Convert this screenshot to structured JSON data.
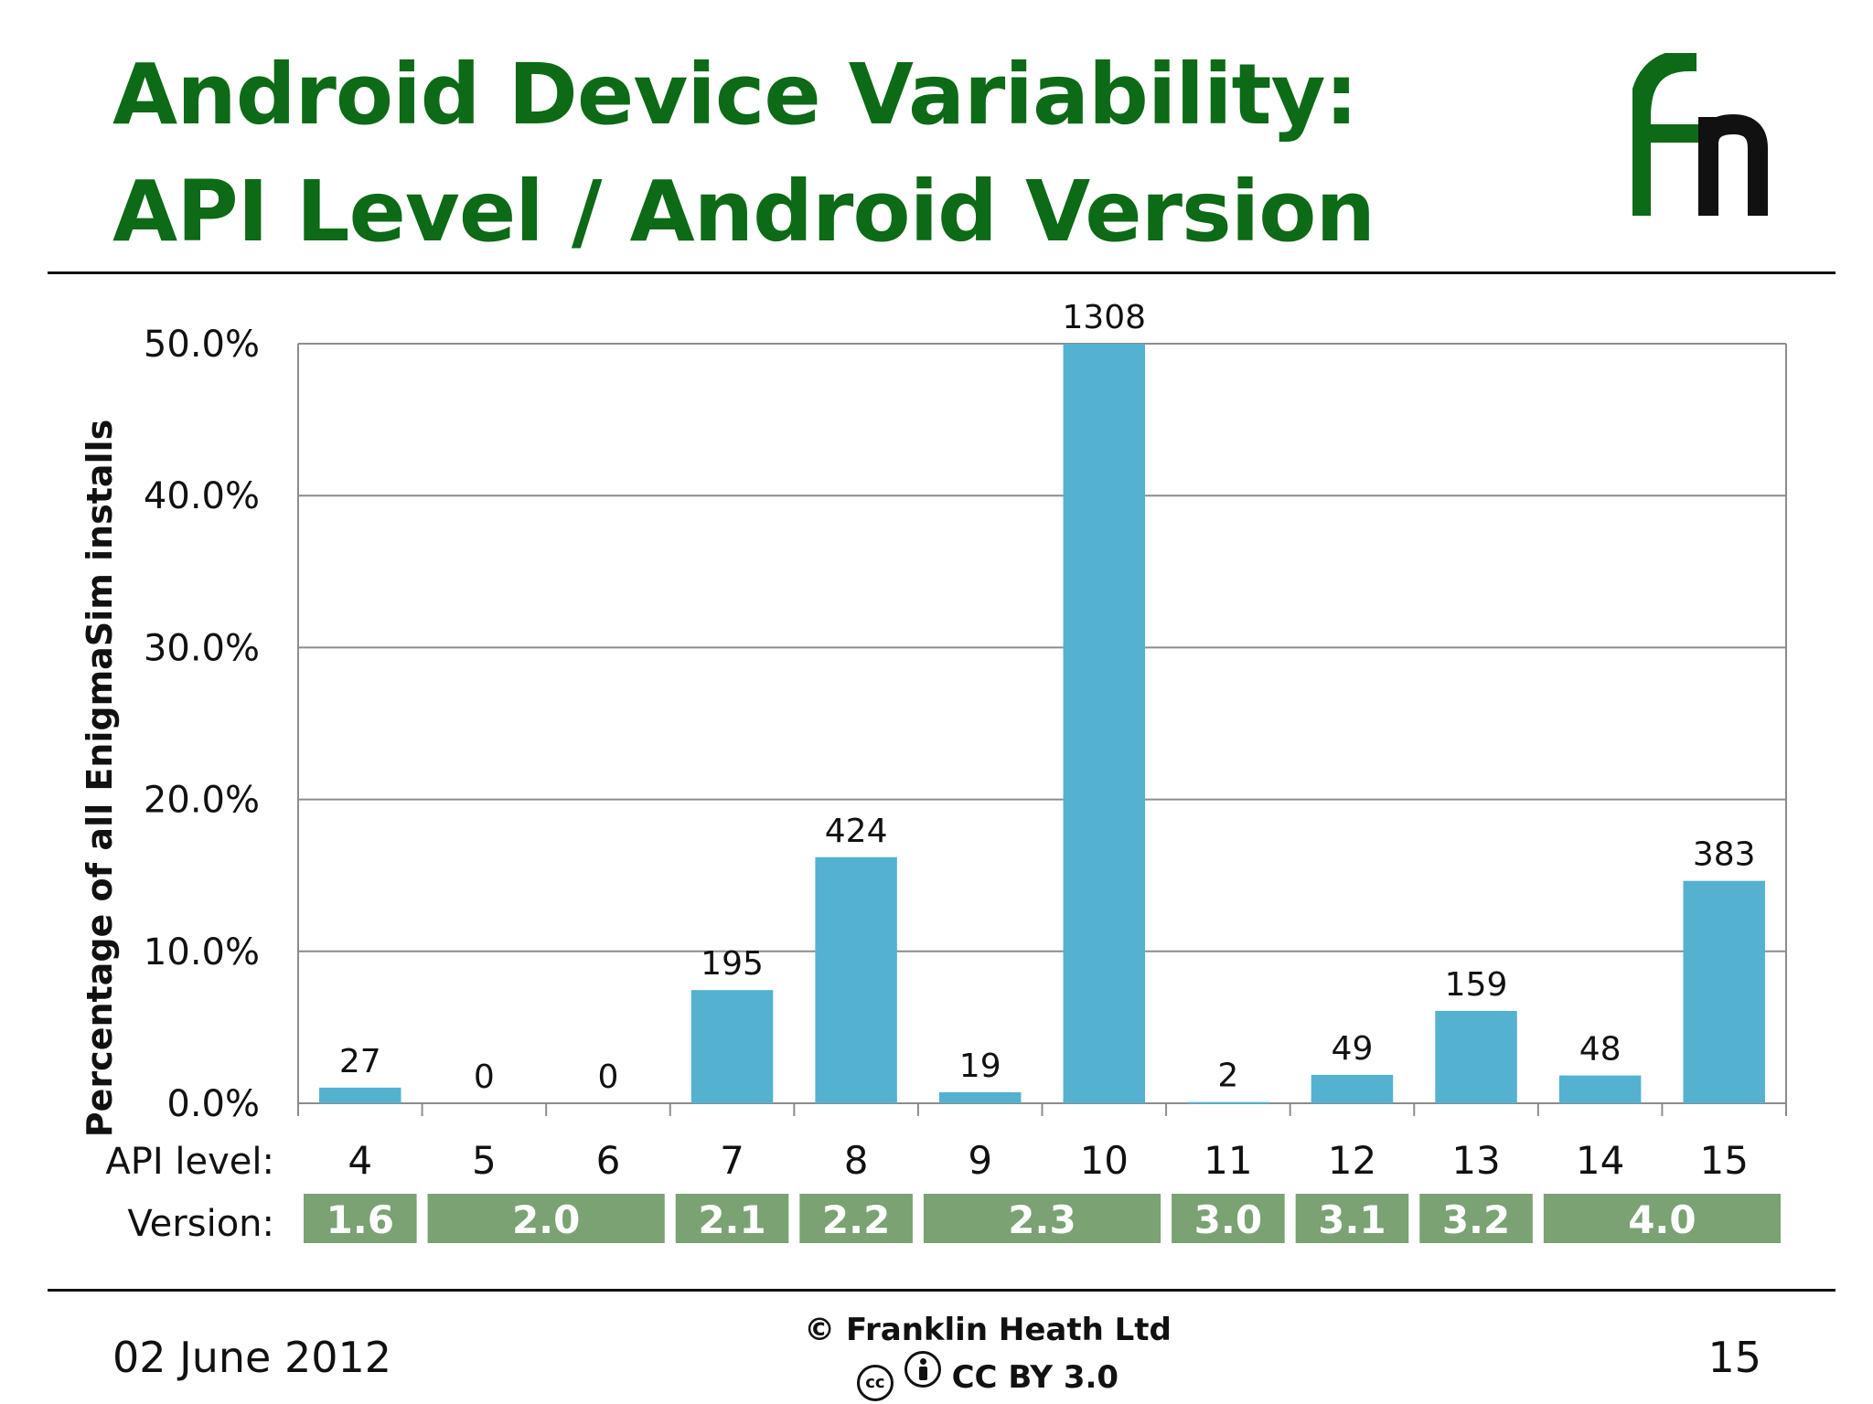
{
  "slide": {
    "title_line1": "Android Device Variability:",
    "title_line2": "API Level / Android Version",
    "date": "02 June 2012",
    "copyright": "© Franklin Heath Ltd",
    "license": "CC BY 3.0",
    "page_number": "15"
  },
  "colors": {
    "title": "#0d6a16",
    "bar": "#55b1d0",
    "version_box": "#7aa273",
    "grid": "#8c8c8c"
  },
  "chart_data": {
    "type": "bar",
    "ylabel": "Percentage of all EnigmaSim installs",
    "ylim": [
      0,
      0.5
    ],
    "yticks": [
      0,
      0.1,
      0.2,
      0.3,
      0.4,
      0.5
    ],
    "ytick_labels": [
      "0.0%",
      "10.0%",
      "20.0%",
      "30.0%",
      "40.0%",
      "50.0%"
    ],
    "grid": true,
    "categories": [
      "4",
      "5",
      "6",
      "7",
      "8",
      "9",
      "10",
      "11",
      "12",
      "13",
      "14",
      "15"
    ],
    "values": [
      0.0103,
      0,
      0,
      0.0745,
      0.162,
      0.0073,
      0.5,
      0.0008,
      0.0187,
      0.0608,
      0.0183,
      0.1464
    ],
    "data_labels": [
      "27",
      "0",
      "0",
      "195",
      "424",
      "19",
      "1308",
      "2",
      "49",
      "159",
      "48",
      "383"
    ],
    "row_labels": {
      "api": "API level:",
      "version": "Version:"
    },
    "versions": [
      {
        "label": "1.6",
        "from": 0,
        "to": 0
      },
      {
        "label": "2.0",
        "from": 1,
        "to": 2
      },
      {
        "label": "2.1",
        "from": 3,
        "to": 3
      },
      {
        "label": "2.2",
        "from": 4,
        "to": 4
      },
      {
        "label": "2.3",
        "from": 5,
        "to": 6
      },
      {
        "label": "3.0",
        "from": 7,
        "to": 7
      },
      {
        "label": "3.1",
        "from": 8,
        "to": 8
      },
      {
        "label": "3.2",
        "from": 9,
        "to": 9
      },
      {
        "label": "4.0",
        "from": 10,
        "to": 11
      }
    ]
  }
}
